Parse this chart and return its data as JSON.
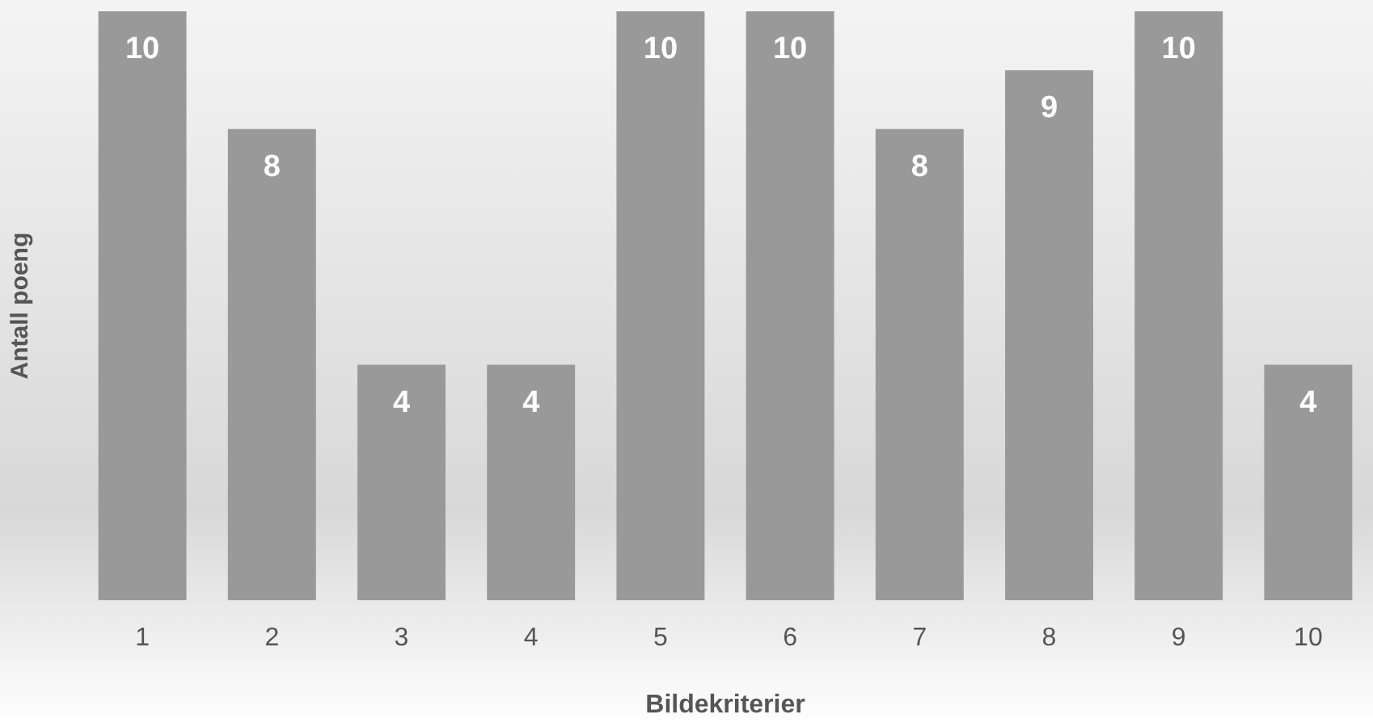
{
  "chart_data": {
    "type": "bar",
    "xlabel": "Bildekriterier",
    "ylabel": "Antall poeng",
    "categories": [
      "1",
      "2",
      "3",
      "4",
      "5",
      "6",
      "7",
      "8",
      "9",
      "10"
    ],
    "values": [
      10,
      8,
      4,
      4,
      10,
      10,
      8,
      9,
      10,
      4
    ],
    "color": "#999999",
    "data_labels": true,
    "grid": false,
    "legend": false
  }
}
